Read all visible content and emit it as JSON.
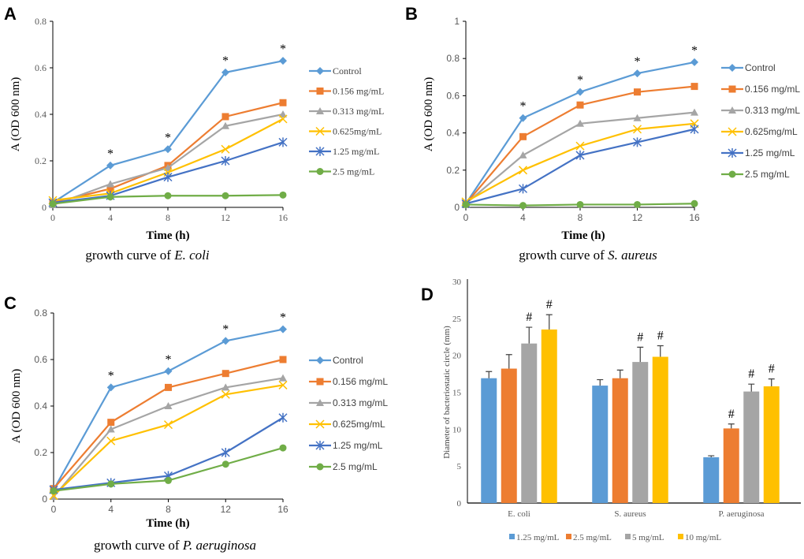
{
  "colors": {
    "Control": "#5b9bd5",
    "0.156 mg/mL": "#ed7d31",
    "0.313 mg/mL": "#a5a5a5",
    "0.625mg/mL": "#ffc000",
    "1.25 mg/mL": "#4472c4",
    "2.5 mg/mL": "#70ad47"
  },
  "chart_data": [
    {
      "panel_label": "A",
      "type": "line",
      "caption": "growth curve of ",
      "caption_italic": "E. coli",
      "xlabel": "Time (h)",
      "ylabel": "A (OD 600 nm)",
      "x": [
        0,
        4,
        8,
        12,
        16
      ],
      "ylim": [
        0,
        0.8
      ],
      "yticks": [
        "0",
        "0.2",
        "0.4",
        "0.6",
        "0.8"
      ],
      "legend": "right",
      "series": [
        {
          "name": "Control",
          "marker": "diamond",
          "values": [
            0.02,
            0.18,
            0.25,
            0.58,
            0.63
          ]
        },
        {
          "name": "0.156 mg/mL",
          "marker": "square",
          "values": [
            0.02,
            0.08,
            0.18,
            0.39,
            0.45
          ]
        },
        {
          "name": "0.313 mg/mL",
          "marker": "triangle",
          "values": [
            0.01,
            0.1,
            0.17,
            0.35,
            0.4
          ]
        },
        {
          "name": "0.625mg/mL",
          "marker": "x",
          "values": [
            0.03,
            0.06,
            0.15,
            0.25,
            0.38
          ]
        },
        {
          "name": "1.25 mg/mL",
          "marker": "star",
          "values": [
            0.02,
            0.05,
            0.13,
            0.2,
            0.28
          ]
        },
        {
          "name": "2.5 mg/mL",
          "marker": "circle",
          "values": [
            0.015,
            0.045,
            0.05,
            0.05,
            0.053
          ]
        }
      ],
      "annotations": [
        {
          "x": 4,
          "text": "*"
        },
        {
          "x": 8,
          "text": "*"
        },
        {
          "x": 12,
          "text": "*"
        },
        {
          "x": 16,
          "text": "*"
        }
      ]
    },
    {
      "panel_label": "B",
      "type": "line",
      "caption": "growth curve of ",
      "caption_italic": "S. aureus",
      "xlabel": "Time (h)",
      "ylabel": "A (OD 600 nm)",
      "x": [
        0,
        4,
        8,
        12,
        16
      ],
      "ylim": [
        0,
        1
      ],
      "yticks": [
        "0",
        "0.2",
        "0.4",
        "0.6",
        "0.8",
        "1"
      ],
      "legend": "right",
      "series": [
        {
          "name": "Control",
          "marker": "diamond",
          "values": [
            0.02,
            0.48,
            0.62,
            0.72,
            0.78
          ]
        },
        {
          "name": "0.156 mg/mL",
          "marker": "square",
          "values": [
            0.02,
            0.38,
            0.55,
            0.62,
            0.65
          ]
        },
        {
          "name": "0.313 mg/mL",
          "marker": "triangle",
          "values": [
            0.02,
            0.28,
            0.45,
            0.48,
            0.51
          ]
        },
        {
          "name": "0.625mg/mL",
          "marker": "x",
          "values": [
            0.03,
            0.2,
            0.33,
            0.42,
            0.45
          ]
        },
        {
          "name": "1.25 mg/mL",
          "marker": "star",
          "values": [
            0.02,
            0.1,
            0.28,
            0.35,
            0.42
          ]
        },
        {
          "name": "2.5 mg/mL",
          "marker": "circle",
          "values": [
            0.015,
            0.01,
            0.015,
            0.015,
            0.02
          ]
        }
      ],
      "annotations": [
        {
          "x": 4,
          "text": "*"
        },
        {
          "x": 8,
          "text": "*"
        },
        {
          "x": 12,
          "text": "*"
        },
        {
          "x": 16,
          "text": "*"
        }
      ]
    },
    {
      "panel_label": "C",
      "type": "line",
      "caption": "growth curve of ",
      "caption_italic": "P. aeruginosa",
      "xlabel": "Time (h)",
      "ylabel": "A (OD 600 nm)",
      "x": [
        0,
        4,
        8,
        12,
        16
      ],
      "ylim": [
        0,
        0.8
      ],
      "yticks": [
        "0",
        "0.2",
        "0.4",
        "0.6",
        "0.8"
      ],
      "legend": "right",
      "series": [
        {
          "name": "Control",
          "marker": "diamond",
          "values": [
            0.04,
            0.48,
            0.55,
            0.68,
            0.73
          ]
        },
        {
          "name": "0.156 mg/mL",
          "marker": "square",
          "values": [
            0.045,
            0.33,
            0.48,
            0.54,
            0.6
          ]
        },
        {
          "name": "0.313 mg/mL",
          "marker": "triangle",
          "values": [
            0.01,
            0.3,
            0.4,
            0.48,
            0.52
          ]
        },
        {
          "name": "0.625mg/mL",
          "marker": "x",
          "values": [
            0.015,
            0.25,
            0.32,
            0.45,
            0.49
          ]
        },
        {
          "name": "1.25 mg/mL",
          "marker": "star",
          "values": [
            0.04,
            0.07,
            0.1,
            0.2,
            0.35
          ]
        },
        {
          "name": "2.5 mg/mL",
          "marker": "circle",
          "values": [
            0.035,
            0.065,
            0.08,
            0.15,
            0.22
          ]
        }
      ],
      "annotations": [
        {
          "x": 4,
          "text": "*"
        },
        {
          "x": 8,
          "text": "*"
        },
        {
          "x": 12,
          "text": "*"
        },
        {
          "x": 16,
          "text": "*"
        }
      ]
    },
    {
      "panel_label": "D",
      "type": "bar",
      "ylabel": "Diameter of bacteriostatic circle (mm)",
      "categories": [
        "E. coli",
        "S. aureus",
        "P. aeruginosa"
      ],
      "ylim": [
        0,
        30
      ],
      "yticks": [
        "0",
        "5",
        "10",
        "15",
        "20",
        "25",
        "30"
      ],
      "legend": "bottom",
      "series": [
        {
          "name": "1.25 mg/mL",
          "color": "#5b9bd5",
          "values": [
            16.9,
            15.9,
            6.2
          ],
          "errors": [
            0.9,
            0.8,
            0.2
          ],
          "marks": [
            "",
            "",
            ""
          ]
        },
        {
          "name": "2.5 mg/mL",
          "color": "#ed7d31",
          "values": [
            18.2,
            16.9,
            10.1
          ],
          "errors": [
            1.9,
            1.1,
            0.6
          ],
          "marks": [
            "",
            "",
            "#"
          ]
        },
        {
          "name": "5 mg/mL",
          "color": "#a5a5a5",
          "values": [
            21.6,
            19.1,
            15.1
          ],
          "errors": [
            2.2,
            2.0,
            1.0
          ],
          "marks": [
            "#",
            "#",
            "#"
          ]
        },
        {
          "name": "10 mg/mL",
          "color": "#ffc000",
          "values": [
            23.5,
            19.8,
            15.8
          ],
          "errors": [
            2.0,
            1.5,
            1.0
          ],
          "marks": [
            "#",
            "#",
            "#"
          ]
        }
      ]
    }
  ]
}
